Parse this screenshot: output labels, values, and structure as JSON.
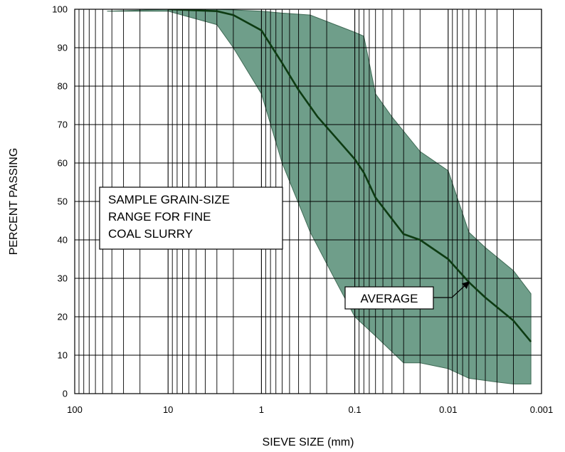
{
  "chart_data": {
    "type": "area",
    "xlabel": "SIEVE SIZE (mm)",
    "ylabel": "PERCENT PASSING",
    "x_scale": "log",
    "x_reversed": true,
    "xlim": [
      100,
      0.001
    ],
    "ylim": [
      0,
      100
    ],
    "x_ticks": [
      100,
      10,
      1,
      0.1,
      0.01,
      0.001
    ],
    "x_tick_labels": [
      "100",
      "10",
      "1",
      "0.1",
      "0.01",
      "0.001"
    ],
    "y_ticks": [
      0,
      10,
      20,
      30,
      40,
      50,
      60,
      70,
      80,
      90,
      100
    ],
    "y_tick_labels": [
      "0",
      "10",
      "20",
      "30",
      "40",
      "50",
      "60",
      "70",
      "80",
      "90",
      "100"
    ],
    "grid": "log-minor vertical, major horizontal",
    "band": {
      "upper": {
        "x": [
          45,
          10,
          3,
          1,
          0.6,
          0.3,
          0.1,
          0.08,
          0.06,
          0.04,
          0.02,
          0.01,
          0.006,
          0.004,
          0.002,
          0.0013
        ],
        "y": [
          99.5,
          100,
          100,
          99.5,
          99,
          98.5,
          94,
          93,
          78,
          72,
          63,
          58,
          42,
          38,
          32,
          26
        ]
      },
      "lower": {
        "x": [
          45,
          10,
          3,
          2,
          1,
          0.6,
          0.3,
          0.15,
          0.1,
          0.06,
          0.03,
          0.02,
          0.01,
          0.006,
          0.003,
          0.002,
          0.0013
        ],
        "y": [
          99.5,
          99.5,
          96,
          90,
          78,
          60,
          42,
          28,
          20,
          15,
          8,
          8,
          6.5,
          4,
          3,
          2.5,
          2.5
        ]
      }
    },
    "series": [
      {
        "name": "AVERAGE",
        "x": [
          10,
          3,
          2,
          1,
          0.6,
          0.4,
          0.25,
          0.1,
          0.08,
          0.06,
          0.03,
          0.02,
          0.01,
          0.006,
          0.004,
          0.002,
          0.0013
        ],
        "y": [
          100,
          99.5,
          98.5,
          94.5,
          86,
          79,
          72,
          61,
          57.5,
          51,
          41.5,
          40,
          35,
          29,
          25,
          19,
          13.5
        ]
      }
    ],
    "annotations": [
      {
        "lines": [
          "SAMPLE GRAIN-SIZE",
          "RANGE FOR FINE",
          "COAL SLURRY"
        ]
      },
      {
        "text": "AVERAGE"
      }
    ],
    "colors": {
      "band_fill": "#6f9e8a",
      "band_edge": "#3f6a55",
      "average_line": "#0d3b12",
      "grid": "#000000"
    }
  }
}
